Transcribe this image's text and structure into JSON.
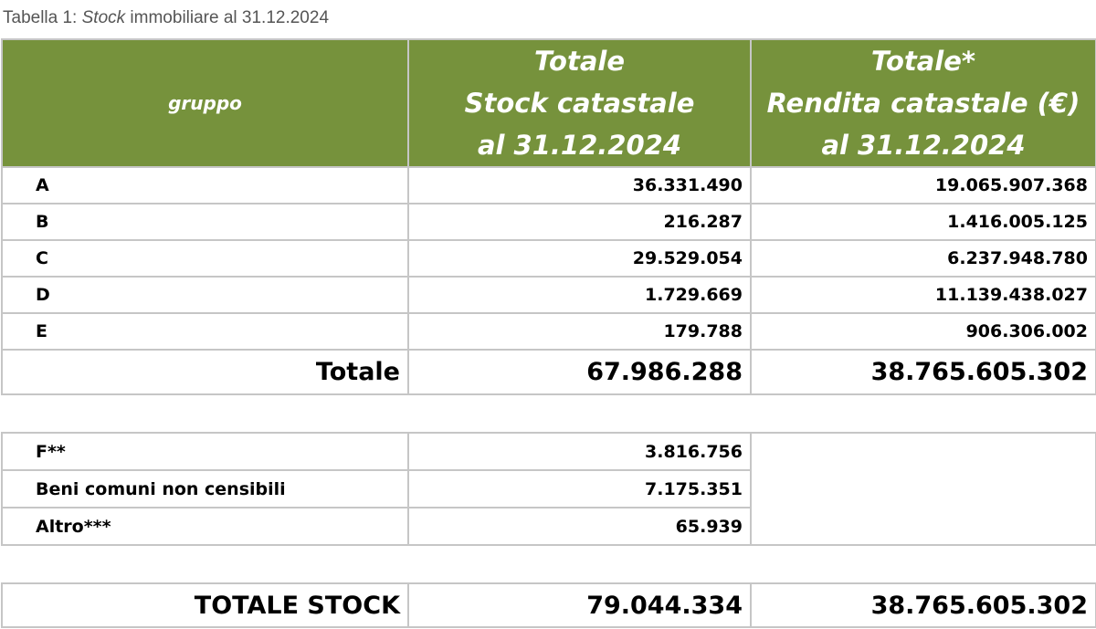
{
  "caption": {
    "prefix": "Tabella 1: ",
    "italic": "Stock",
    "suffix": " immobiliare al 31.12.2024"
  },
  "header": {
    "col1": "gruppo",
    "col2": [
      "Totale",
      "Stock catastale",
      "al 31.12.2024"
    ],
    "col3": [
      "Totale*",
      "Rendita catastale (€)",
      "al 31.12.2024"
    ]
  },
  "rows": [
    {
      "gruppo": "A",
      "stock": "36.331.490",
      "rendita": "19.065.907.368"
    },
    {
      "gruppo": "B",
      "stock": "216.287",
      "rendita": "1.416.005.125"
    },
    {
      "gruppo": "C",
      "stock": "29.529.054",
      "rendita": "6.237.948.780"
    },
    {
      "gruppo": "D",
      "stock": "1.729.669",
      "rendita": "11.139.438.027"
    },
    {
      "gruppo": "E",
      "stock": "179.788",
      "rendita": "906.306.002"
    }
  ],
  "totale": {
    "label": "Totale",
    "stock": "67.986.288",
    "rendita": "38.765.605.302"
  },
  "extra_rows": [
    {
      "label": "F**",
      "stock": "3.816.756"
    },
    {
      "label": "Beni comuni non censibili",
      "stock": "7.175.351"
    },
    {
      "label": "Altro***",
      "stock": "65.939"
    }
  ],
  "totale_stock": {
    "label": "TOTALE STOCK",
    "stock": "79.044.334",
    "rendita": "38.765.605.302"
  },
  "colors": {
    "header_bg": "#76923c",
    "header_text": "#ffffff",
    "border": "#c6c6c6",
    "caption": "#555555"
  }
}
